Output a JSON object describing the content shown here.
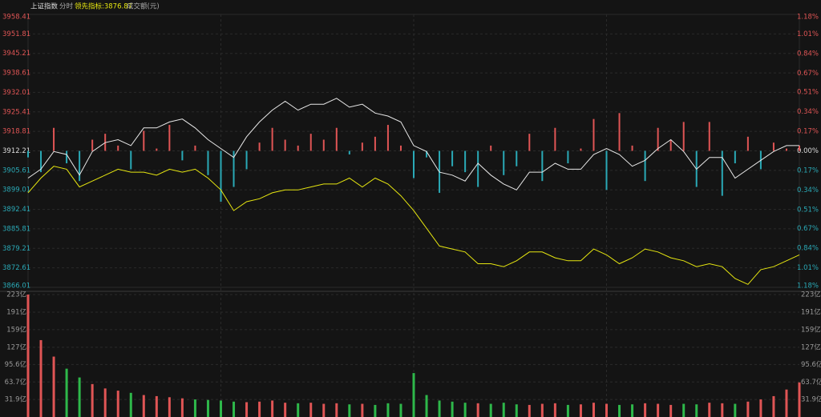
{
  "header": {
    "title": "上证指数",
    "mode": "分时",
    "indicator": "领先指标:3876.87"
  },
  "chart_data": [
    {
      "type": "line",
      "baseline": 3912.21,
      "ylim": [
        3866.01,
        3958.41
      ],
      "yticks": [
        3866.01,
        3872.61,
        3879.21,
        3885.81,
        3892.41,
        3899.01,
        3905.61,
        3912.21,
        3918.81,
        3925.41,
        3932.01,
        3938.61,
        3945.21,
        3951.81,
        3958.41
      ],
      "y2lim": [
        -1.18,
        1.18
      ],
      "y2ticks": [
        {
          "value": -1.18,
          "label": "1.18%"
        },
        {
          "value": -1.01,
          "label": "1.01%"
        },
        {
          "value": -0.84,
          "label": "0.84%"
        },
        {
          "value": -0.67,
          "label": "0.67%"
        },
        {
          "value": -0.51,
          "label": "0.51%"
        },
        {
          "value": -0.34,
          "label": "0.34%"
        },
        {
          "value": -0.17,
          "label": "0.17%"
        },
        {
          "value": 0,
          "label": "0.00%"
        },
        {
          "value": 0.17,
          "label": "0.17%"
        },
        {
          "value": 0.34,
          "label": "0.34%"
        },
        {
          "value": 0.51,
          "label": "0.51%"
        },
        {
          "value": 0.67,
          "label": "0.67%"
        },
        {
          "value": 0.84,
          "label": "0.84%"
        },
        {
          "value": 1.01,
          "label": "1.01%"
        },
        {
          "value": 1.18,
          "label": "1.18%"
        }
      ],
      "up_color": "#e05555",
      "down_color": "#2aa9b6",
      "series": [
        {
          "color": "#e8e8e8",
          "values": [
            3903,
            3906,
            3912,
            3911,
            3904,
            3912,
            3915,
            3916,
            3914,
            3920,
            3920,
            3922,
            3923,
            3920,
            3916,
            3913,
            3910,
            3917,
            3922,
            3926,
            3929,
            3926,
            3928,
            3928,
            3930,
            3927,
            3928,
            3925,
            3924,
            3922,
            3914,
            3912,
            3905,
            3904,
            3902,
            3908,
            3904,
            3901,
            3899,
            3905,
            3905,
            3908,
            3906,
            3906,
            3911,
            3913,
            3911,
            3907,
            3909,
            3913,
            3916,
            3912,
            3906,
            3910,
            3910,
            3903,
            3906,
            3909,
            3912,
            3914,
            3914
          ]
        },
        {
          "color": "#e6e610",
          "values": [
            3898,
            3903,
            3907,
            3906,
            3900,
            3902,
            3904,
            3906,
            3905,
            3905,
            3904,
            3906,
            3905,
            3906,
            3903,
            3899,
            3892,
            3895,
            3896,
            3898,
            3899,
            3899,
            3900,
            3901,
            3901,
            3903,
            3900,
            3903,
            3901,
            3897,
            3892,
            3886,
            3880,
            3879,
            3878,
            3874,
            3874,
            3873,
            3875,
            3878,
            3878,
            3876,
            3875,
            3875,
            3879,
            3877,
            3874,
            3876,
            3879,
            3878,
            3876,
            3875,
            3873,
            3874,
            3873,
            3869,
            3867,
            3872,
            3873,
            3875,
            3877
          ]
        }
      ],
      "bars": [
        3910,
        3905,
        3920,
        3908,
        3902,
        3916,
        3918,
        3914,
        3906,
        3919,
        3913,
        3921,
        3909,
        3914,
        3904,
        3895,
        3900,
        3906,
        3915,
        3920,
        3916,
        3914,
        3918,
        3916,
        3920,
        3911,
        3915,
        3917,
        3921,
        3914,
        3903,
        3910,
        3898,
        3907,
        3905,
        3900,
        3914,
        3904,
        3907,
        3918,
        3902,
        3920,
        3908,
        3913,
        3923,
        3899,
        3925,
        3914,
        3902,
        3920,
        3916,
        3922,
        3900,
        3922,
        3897,
        3908,
        3917,
        3906,
        3915,
        3913,
        3914
      ]
    },
    {
      "type": "bar",
      "title": "成交额(元)",
      "ylim": [
        0,
        223
      ],
      "yticks": [
        {
          "value": 31.9,
          "label": "31.9亿"
        },
        {
          "value": 63.7,
          "label": "63.7亿"
        },
        {
          "value": 95.6,
          "label": "95.6亿"
        },
        {
          "value": 127,
          "label": "127亿"
        },
        {
          "value": 159,
          "label": "159亿"
        },
        {
          "value": 191,
          "label": "191亿"
        },
        {
          "value": 223,
          "label": "223亿"
        }
      ],
      "up_color": "#e05555",
      "down_color": "#2eb84a",
      "values": [
        223,
        140,
        110,
        88,
        72,
        60,
        52,
        48,
        44,
        40,
        38,
        36,
        34,
        32,
        31,
        30,
        28,
        27,
        28,
        30,
        26,
        25,
        26,
        24,
        25,
        23,
        24,
        22,
        25,
        24,
        80,
        40,
        30,
        28,
        26,
        25,
        24,
        26,
        23,
        22,
        24,
        25,
        22,
        23,
        26,
        24,
        22,
        23,
        25,
        24,
        22,
        24,
        23,
        26,
        25,
        24,
        28,
        32,
        38,
        50,
        63
      ]
    }
  ]
}
